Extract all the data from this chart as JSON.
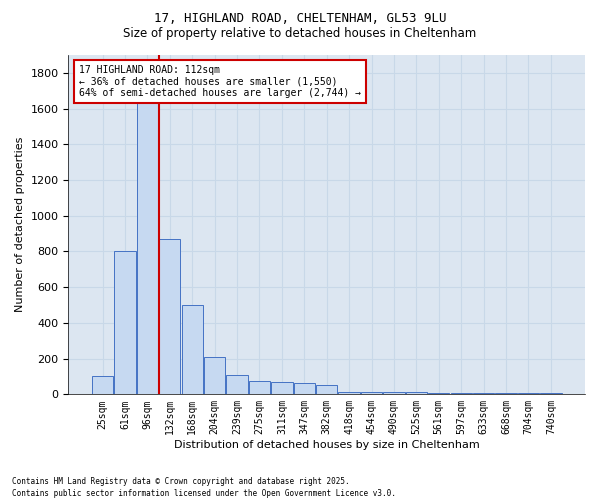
{
  "title_line1": "17, HIGHLAND ROAD, CHELTENHAM, GL53 9LU",
  "title_line2": "Size of property relative to detached houses in Cheltenham",
  "xlabel": "Distribution of detached houses by size in Cheltenham",
  "ylabel": "Number of detached properties",
  "footnote1": "Contains HM Land Registry data © Crown copyright and database right 2025.",
  "footnote2": "Contains public sector information licensed under the Open Government Licence v3.0.",
  "annotation_line1": "17 HIGHLAND ROAD: 112sqm",
  "annotation_line2": "← 36% of detached houses are smaller (1,550)",
  "annotation_line3": "64% of semi-detached houses are larger (2,744) →",
  "bar_labels": [
    "25sqm",
    "61sqm",
    "96sqm",
    "132sqm",
    "168sqm",
    "204sqm",
    "239sqm",
    "275sqm",
    "311sqm",
    "347sqm",
    "382sqm",
    "418sqm",
    "454sqm",
    "490sqm",
    "525sqm",
    "561sqm",
    "597sqm",
    "633sqm",
    "668sqm",
    "704sqm",
    "740sqm"
  ],
  "bar_values": [
    100,
    800,
    1680,
    870,
    500,
    210,
    110,
    75,
    70,
    65,
    50,
    15,
    15,
    12,
    12,
    10,
    10,
    8,
    8,
    8,
    8
  ],
  "bar_color": "#c6d9f1",
  "bar_edge_color": "#4472c4",
  "grid_color": "#c8d8e8",
  "background_color": "#dce6f1",
  "vline_color": "#cc0000",
  "vline_x": 2.5,
  "ylim": [
    0,
    1900
  ],
  "yticks": [
    0,
    200,
    400,
    600,
    800,
    1000,
    1200,
    1400,
    1600,
    1800
  ]
}
